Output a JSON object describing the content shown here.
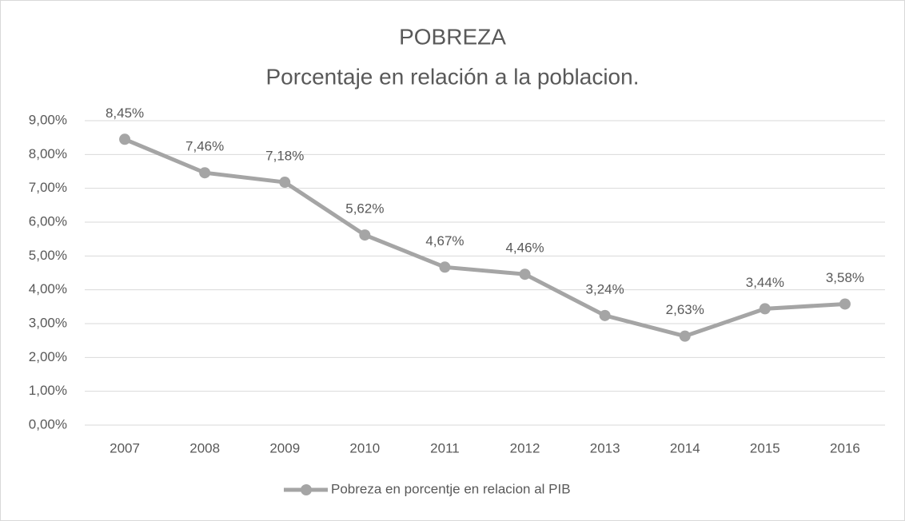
{
  "chart_data": {
    "type": "line",
    "title": "POBREZA",
    "subtitle": "Porcentaje en relación a la poblacion.",
    "categories": [
      "2007",
      "2008",
      "2009",
      "2010",
      "2011",
      "2012",
      "2013",
      "2014",
      "2015",
      "2016"
    ],
    "series": [
      {
        "name": "Pobreza en porcentje en relacion al PIB",
        "color": "#a5a5a5",
        "values": [
          8.45,
          7.46,
          7.18,
          5.62,
          4.67,
          4.46,
          3.24,
          2.63,
          3.44,
          3.58
        ],
        "value_labels": [
          "8,45%",
          "7,46%",
          "7,18%",
          "5,62%",
          "4,67%",
          "4,46%",
          "3,24%",
          "2,63%",
          "3,44%",
          "3,58%"
        ]
      }
    ],
    "ylim": [
      0,
      9
    ],
    "yticks": [
      {
        "value": 0,
        "label": "0,00%"
      },
      {
        "value": 1,
        "label": "1,00%"
      },
      {
        "value": 2,
        "label": "2,00%"
      },
      {
        "value": 3,
        "label": "3,00%"
      },
      {
        "value": 4,
        "label": "4,00%"
      },
      {
        "value": 5,
        "label": "5,00%"
      },
      {
        "value": 6,
        "label": "6,00%"
      },
      {
        "value": 7,
        "label": "7,00%"
      },
      {
        "value": 8,
        "label": "8,00%"
      },
      {
        "value": 9,
        "label": "9,00%"
      }
    ],
    "grid": true,
    "legend": "bottom"
  }
}
